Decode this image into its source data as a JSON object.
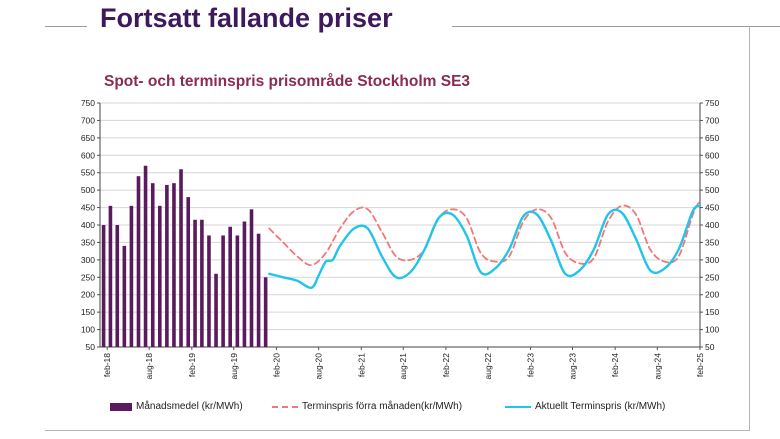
{
  "slide": {
    "title": "Fortsatt fallande priser"
  },
  "chart_data": {
    "type": "bar",
    "title": "Spot- och terminspris prisområde Stockholm SE3",
    "xlabel": "",
    "ylabel": "",
    "ylim": [
      50,
      750
    ],
    "y2lim": [
      50,
      750
    ],
    "yticks": [
      50,
      100,
      150,
      200,
      250,
      300,
      350,
      400,
      450,
      500,
      550,
      600,
      650,
      700,
      750
    ],
    "grid": true,
    "legend": "bottom",
    "x_tick_labels": [
      "feb-18",
      "aug-18",
      "feb-19",
      "aug-19",
      "feb-20",
      "aug-20",
      "feb-21",
      "aug-21",
      "feb-22",
      "aug-22",
      "feb-23",
      "aug-23",
      "feb-24",
      "aug-24",
      "feb-25"
    ],
    "months": [
      "2018-01",
      "2019-12"
    ],
    "colors": {
      "bars": "#5b1a5e",
      "previous": "#f07878",
      "current": "#22c4ea"
    },
    "series": [
      {
        "name": "Månadsmedel (kr/MWh)",
        "kind": "bar",
        "x": [
          "2018-01",
          "2018-02",
          "2018-03",
          "2018-04",
          "2018-05",
          "2018-06",
          "2018-07",
          "2018-08",
          "2018-09",
          "2018-10",
          "2018-11",
          "2018-12",
          "2019-01",
          "2019-02",
          "2019-03",
          "2019-04",
          "2019-05",
          "2019-06",
          "2019-07",
          "2019-08",
          "2019-09",
          "2019-10",
          "2019-11",
          "2019-12"
        ],
        "values": [
          400,
          455,
          400,
          340,
          455,
          540,
          570,
          520,
          455,
          515,
          520,
          560,
          480,
          415,
          415,
          370,
          260,
          370,
          395,
          370,
          410,
          445,
          375,
          250
        ]
      },
      {
        "name": "Terminspris förra månaden(kr/MWh)",
        "kind": "line-dashed",
        "x": [
          "2020-01",
          "2020-03",
          "2020-05",
          "2020-07",
          "2020-09",
          "2020-11",
          "2021-01",
          "2021-03",
          "2021-05",
          "2021-07",
          "2021-09",
          "2021-11",
          "2022-01",
          "2022-03",
          "2022-05",
          "2022-07",
          "2022-09",
          "2022-11",
          "2023-01",
          "2023-03",
          "2023-05",
          "2023-07",
          "2023-09",
          "2023-11",
          "2024-01",
          "2024-03",
          "2024-05",
          "2024-07",
          "2024-09",
          "2024-11",
          "2025-01",
          "2025-02"
        ],
        "values": [
          390,
          350,
          310,
          285,
          320,
          390,
          440,
          445,
          380,
          310,
          300,
          330,
          420,
          445,
          420,
          320,
          295,
          310,
          410,
          445,
          420,
          320,
          290,
          305,
          410,
          455,
          430,
          330,
          295,
          310,
          430,
          470
        ]
      },
      {
        "name": "Aktuellt Terminspris (kr/MWh)",
        "kind": "line",
        "x": [
          "2020-01",
          "2020-03",
          "2020-05",
          "2020-07",
          "2020-08",
          "2020-09",
          "2020-10",
          "2020-11",
          "2021-01",
          "2021-03",
          "2021-05",
          "2021-07",
          "2021-09",
          "2021-11",
          "2022-01",
          "2022-03",
          "2022-05",
          "2022-07",
          "2022-09",
          "2022-11",
          "2023-01",
          "2023-03",
          "2023-05",
          "2023-07",
          "2023-09",
          "2023-11",
          "2024-01",
          "2024-03",
          "2024-05",
          "2024-07",
          "2024-09",
          "2024-11",
          "2025-01",
          "2025-02"
        ],
        "values": [
          260,
          250,
          240,
          220,
          255,
          295,
          300,
          340,
          390,
          390,
          310,
          250,
          265,
          330,
          420,
          430,
          370,
          265,
          275,
          330,
          425,
          430,
          355,
          260,
          270,
          330,
          430,
          435,
          360,
          270,
          275,
          330,
          440,
          455
        ]
      }
    ]
  }
}
